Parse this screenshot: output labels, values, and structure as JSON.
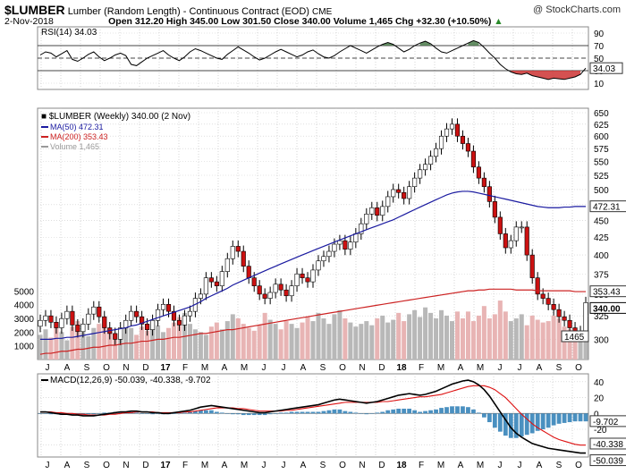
{
  "header": {
    "symbol": "$LUMBER",
    "description": "Lumber (Random Length) - Continuous Contract (EOD)",
    "exchange": "CME",
    "watermark": "@ StockCharts.com",
    "date": "2-Nov-2018",
    "ohlc_line": "Open 312.20  High 345.00  Low 301.50  Close 340.00  Volume 1,465  Chg +32.30 (+10.50%)",
    "up_arrow": "▲"
  },
  "colors": {
    "up_candle": "#ffffff",
    "down_candle": "#cc1111",
    "ma50": "#1a1aa0",
    "ma200": "#cc2222",
    "volume_up": "#b8b8b8",
    "volume_down": "#e8b4b4",
    "rsi_line": "#000000",
    "rsi_overbought_fill": "#4a7a4a",
    "rsi_oversold_fill": "#cc3333",
    "macd_line": "#000000",
    "signal_line": "#dd1111",
    "histogram": "#4a90c0",
    "grid": "#cccccc"
  },
  "chart_data": [
    {
      "type": "line",
      "panel": "rsi",
      "legend": "RSI(14) 34.03",
      "y_ticks": [
        90,
        70,
        50,
        30,
        10
      ],
      "ylim": [
        0,
        100
      ],
      "reference_lines": [
        70,
        50,
        30
      ],
      "last_value_label": "34.03",
      "values": [
        55,
        60,
        58,
        52,
        57,
        62,
        48,
        45,
        50,
        56,
        60,
        52,
        46,
        50,
        55,
        58,
        54,
        40,
        38,
        44,
        50,
        54,
        58,
        62,
        55,
        50,
        46,
        52,
        60,
        65,
        62,
        58,
        54,
        50,
        48,
        56,
        62,
        68,
        63,
        58,
        52,
        47,
        50,
        55,
        60,
        64,
        60,
        56,
        52,
        55,
        60,
        63,
        57,
        52,
        50,
        54,
        60,
        65,
        70,
        66,
        62,
        58,
        63,
        68,
        72,
        75,
        72,
        66,
        60,
        64,
        70,
        74,
        77,
        73,
        66,
        60,
        58,
        62,
        66,
        70,
        74,
        78,
        75,
        67,
        58,
        50,
        40,
        33,
        28,
        25,
        24,
        26,
        22,
        20,
        18,
        16,
        18,
        17,
        16,
        18,
        20,
        24,
        34
      ]
    },
    {
      "type": "line",
      "panel": "price",
      "title": "$LUMBER (Weekly) 340.00 (2 Nov)",
      "legend": [
        {
          "name": "MA(50)",
          "value": "472.31",
          "color": "#1a1aa0"
        },
        {
          "name": "MA(200)",
          "value": "353.43",
          "color": "#cc2222"
        },
        {
          "name": "Volume",
          "value": "1,465",
          "color": "#999999"
        }
      ],
      "y_ticks": [
        650,
        625,
        600,
        575,
        550,
        525,
        500,
        475,
        450,
        425,
        400,
        375,
        350,
        325,
        300
      ],
      "ylim": [
        280,
        660
      ],
      "log_scale": true,
      "last_price_label": "340.00",
      "ma50_label": "472.31",
      "ma200_label": "353.43",
      "volume_label": "1465",
      "volume_ticks": [
        5000,
        4000,
        3000,
        2000,
        1000
      ],
      "volume_ylim": [
        0,
        6000
      ],
      "x_labels": [
        "J",
        "A",
        "S",
        "O",
        "N",
        "D",
        "17",
        "F",
        "M",
        "A",
        "M",
        "J",
        "J",
        "A",
        "S",
        "O",
        "N",
        "D",
        "18",
        "F",
        "M",
        "A",
        "M",
        "J",
        "J",
        "A",
        "S",
        "O"
      ],
      "close": [
        320,
        325,
        318,
        312,
        322,
        330,
        315,
        308,
        316,
        327,
        335,
        324,
        312,
        306,
        300,
        312,
        320,
        330,
        324,
        316,
        310,
        320,
        332,
        338,
        330,
        320,
        315,
        325,
        330,
        345,
        350,
        370,
        365,
        360,
        378,
        395,
        412,
        405,
        385,
        370,
        360,
        350,
        345,
        352,
        362,
        355,
        348,
        360,
        375,
        370,
        365,
        380,
        392,
        398,
        405,
        415,
        420,
        408,
        418,
        430,
        445,
        460,
        470,
        458,
        472,
        488,
        500,
        495,
        485,
        505,
        520,
        535,
        545,
        560,
        575,
        600,
        615,
        625,
        600,
        585,
        570,
        540,
        520,
        505,
        480,
        455,
        430,
        410,
        420,
        440,
        440,
        400,
        370,
        350,
        345,
        338,
        332,
        324,
        320,
        312,
        305,
        308,
        340
      ],
      "ma50": [
        300,
        300,
        300,
        301,
        301,
        302,
        302,
        303,
        304,
        305,
        306,
        307,
        308,
        309,
        310,
        311,
        312,
        314,
        315,
        317,
        319,
        321,
        323,
        325,
        327,
        329,
        331,
        333,
        335,
        338,
        341,
        345,
        348,
        351,
        354,
        357,
        361,
        364,
        367,
        370,
        373,
        376,
        379,
        382,
        385,
        388,
        391,
        394,
        397,
        400,
        403,
        406,
        409,
        412,
        415,
        418,
        421,
        424,
        427,
        430,
        433,
        436,
        439,
        442,
        445,
        448,
        451,
        455,
        459,
        463,
        467,
        471,
        475,
        479,
        483,
        487,
        491,
        494,
        496,
        497,
        497,
        496,
        494,
        492,
        490,
        488,
        486,
        484,
        482,
        480,
        478,
        476,
        474,
        472,
        471,
        470,
        470,
        470,
        471,
        471,
        472,
        472,
        472
      ],
      "ma200": [
        285,
        286,
        286,
        287,
        288,
        288,
        289,
        290,
        290,
        291,
        292,
        292,
        293,
        294,
        294,
        295,
        296,
        296,
        297,
        298,
        298,
        299,
        300,
        300,
        301,
        302,
        302,
        303,
        304,
        305,
        306,
        306,
        307,
        308,
        309,
        310,
        310,
        311,
        312,
        313,
        314,
        315,
        316,
        317,
        318,
        319,
        320,
        321,
        322,
        323,
        324,
        325,
        326,
        327,
        328,
        329,
        330,
        331,
        332,
        333,
        334,
        335,
        336,
        337,
        338,
        339,
        340,
        341,
        342,
        343,
        344,
        345,
        346,
        347,
        348,
        349,
        350,
        351,
        352,
        353,
        354,
        354,
        355,
        355,
        356,
        356,
        356,
        356,
        356,
        355,
        355,
        355,
        355,
        354,
        354,
        354,
        354,
        354,
        354,
        354,
        353,
        353,
        353
      ],
      "volume": [
        1800,
        2200,
        1600,
        2600,
        2000,
        1400,
        2400,
        2800,
        2000,
        1700,
        2300,
        2600,
        3100,
        2200,
        1500,
        1900,
        2700,
        2300,
        1800,
        2400,
        2100,
        2900,
        2500,
        2000,
        2300,
        2700,
        3100,
        3400,
        2600,
        2200,
        2000,
        1800,
        2400,
        2700,
        2200,
        2800,
        3300,
        3000,
        2600,
        2300,
        2100,
        2500,
        3400,
        2900,
        2600,
        2200,
        2800,
        2600,
        2300,
        2700,
        3100,
        2800,
        3400,
        3000,
        2600,
        3300,
        3600,
        3000,
        2700,
        2400,
        2600,
        2800,
        2500,
        3000,
        3200,
        2700,
        2900,
        3400,
        2800,
        3300,
        3600,
        3100,
        3800,
        3400,
        3000,
        3600,
        3200,
        2800,
        3500,
        3000,
        3500,
        2800,
        3200,
        3900,
        3000,
        3300,
        4300,
        3500,
        2800,
        3000,
        3300,
        2500,
        3200,
        2900,
        2700,
        2800,
        3200,
        3000,
        2400,
        2200,
        2000,
        1700,
        1465
      ]
    },
    {
      "type": "line",
      "panel": "macd",
      "legend": "MACD(12,26,9) -50.039, -40.338, -9.702",
      "y_ticks": [
        40,
        20,
        0,
        -20,
        -40
      ],
      "ylim": [
        -55,
        50
      ],
      "labels": {
        "histogram": "-9.702",
        "signal": "-40.338",
        "macd": "-50.039"
      },
      "x_labels": [
        "J",
        "A",
        "S",
        "O",
        "N",
        "D",
        "17",
        "F",
        "M",
        "A",
        "M",
        "J",
        "J",
        "A",
        "S",
        "O",
        "N",
        "D",
        "18",
        "F",
        "M",
        "A",
        "M",
        "J",
        "J",
        "A",
        "S",
        "O"
      ],
      "macd": [
        2,
        2,
        1,
        0,
        -1,
        -1,
        -2,
        -2,
        -3,
        -3,
        -3,
        -2,
        -1,
        0,
        1,
        2,
        2,
        3,
        3,
        2,
        2,
        1,
        1,
        0,
        0,
        1,
        2,
        3,
        4,
        6,
        8,
        9,
        10,
        9,
        8,
        7,
        6,
        5,
        4,
        3,
        2,
        1,
        1,
        2,
        3,
        4,
        5,
        6,
        7,
        8,
        9,
        10,
        11,
        13,
        15,
        17,
        18,
        17,
        16,
        15,
        14,
        13,
        14,
        15,
        17,
        19,
        21,
        23,
        24,
        25,
        24,
        23,
        24,
        26,
        28,
        31,
        34,
        37,
        39,
        41,
        42,
        40,
        36,
        30,
        22,
        12,
        2,
        -8,
        -18,
        -25,
        -30,
        -34,
        -38,
        -40,
        -42,
        -44,
        -45,
        -46,
        -47,
        -48,
        -49,
        -50,
        -50
      ],
      "signal": [
        2,
        2,
        2,
        1,
        1,
        0,
        0,
        -1,
        -1,
        -2,
        -2,
        -2,
        -2,
        -1,
        -1,
        0,
        1,
        1,
        2,
        2,
        2,
        2,
        1,
        1,
        1,
        1,
        1,
        2,
        2,
        3,
        4,
        5,
        6,
        7,
        7,
        7,
        7,
        6,
        6,
        5,
        4,
        3,
        3,
        3,
        3,
        3,
        4,
        4,
        5,
        6,
        7,
        8,
        9,
        10,
        11,
        12,
        13,
        14,
        14,
        14,
        14,
        14,
        14,
        14,
        15,
        15,
        16,
        17,
        18,
        19,
        20,
        21,
        21,
        22,
        23,
        24,
        26,
        28,
        30,
        32,
        34,
        35,
        35,
        35,
        33,
        30,
        25,
        20,
        13,
        6,
        -1,
        -7,
        -13,
        -18,
        -22,
        -26,
        -30,
        -33,
        -35,
        -37,
        -39,
        -40,
        -40
      ]
    }
  ]
}
